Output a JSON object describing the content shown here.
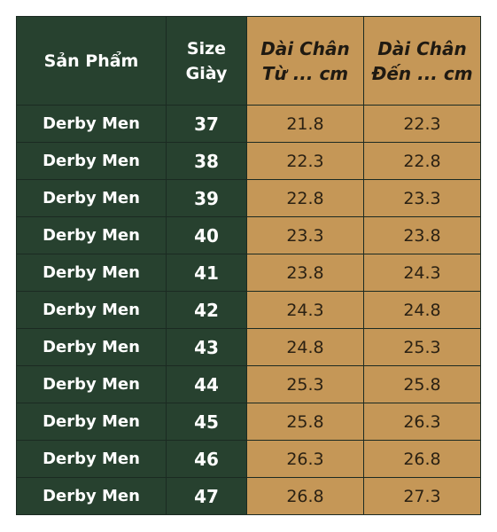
{
  "headers": {
    "product": "Sản Phẩm",
    "size_line1": "Size",
    "size_line2": "Giày",
    "from_line1": "Dài Chân",
    "from_line2": "Từ ... cm",
    "to_line1": "Dài Chân",
    "to_line2": "Đến ... cm"
  },
  "rows": [
    {
      "product": "Derby Men",
      "size": "37",
      "from": "21.8",
      "to": "22.3"
    },
    {
      "product": "Derby Men",
      "size": "38",
      "from": "22.3",
      "to": "22.8"
    },
    {
      "product": "Derby Men",
      "size": "39",
      "from": "22.8",
      "to": "23.3"
    },
    {
      "product": "Derby Men",
      "size": "40",
      "from": "23.3",
      "to": "23.8"
    },
    {
      "product": "Derby Men",
      "size": "41",
      "from": "23.8",
      "to": "24.3"
    },
    {
      "product": "Derby Men",
      "size": "42",
      "from": "24.3",
      "to": "24.8"
    },
    {
      "product": "Derby Men",
      "size": "43",
      "from": "24.8",
      "to": "25.3"
    },
    {
      "product": "Derby Men",
      "size": "44",
      "from": "25.3",
      "to": "25.8"
    },
    {
      "product": "Derby Men",
      "size": "45",
      "from": "25.8",
      "to": "26.3"
    },
    {
      "product": "Derby Men",
      "size": "46",
      "from": "26.3",
      "to": "26.8"
    },
    {
      "product": "Derby Men",
      "size": "47",
      "from": "26.8",
      "to": "27.3"
    }
  ],
  "colors": {
    "dark_green": "#27412f",
    "tan": "#c59757",
    "border": "#1b2a22"
  }
}
